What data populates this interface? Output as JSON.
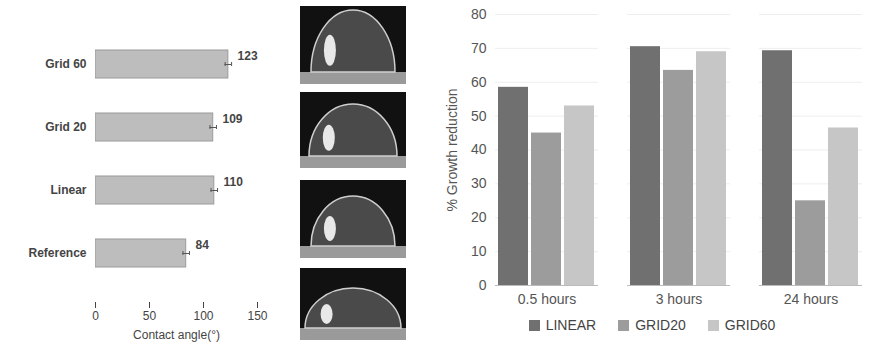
{
  "chart_data": [
    {
      "type": "bar",
      "orientation": "horizontal",
      "x_label": "Contact angle(°)",
      "categories": [
        "Grid 60",
        "Grid 20",
        "Linear",
        "Reference"
      ],
      "values": [
        123,
        109,
        110,
        84
      ],
      "errors": [
        3,
        3,
        3,
        3
      ],
      "color": "#bdbdbd",
      "xlim": [
        0,
        150
      ],
      "xticks": [
        0,
        50,
        100,
        150
      ],
      "grid": false,
      "data_labels": true
    },
    {
      "type": "bar",
      "y_label": "% Growth reduction",
      "categories": [
        "0.5 hours",
        "3 hours",
        "24 hours"
      ],
      "series": [
        {
          "name": "LINEAR",
          "color": "#707070",
          "values": [
            58.5,
            70.5,
            69.3
          ]
        },
        {
          "name": "GRID20",
          "color": "#9c9c9c",
          "values": [
            45,
            63.5,
            25
          ]
        },
        {
          "name": "GRID60",
          "color": "#c6c6c6",
          "values": [
            53,
            69,
            46.5
          ]
        }
      ],
      "ylim": [
        0,
        80
      ],
      "yticks": [
        0,
        10,
        20,
        30,
        40,
        50,
        60,
        70,
        80
      ],
      "grid": true,
      "legend": "bottom"
    }
  ]
}
